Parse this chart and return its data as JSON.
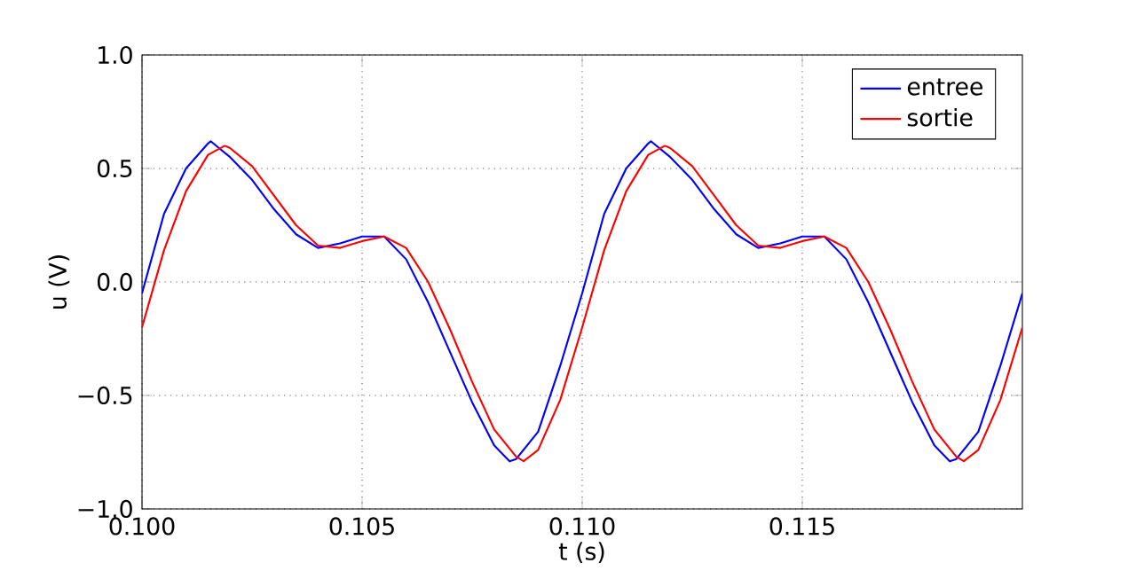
{
  "chart_data": {
    "type": "line",
    "xlabel": "t (s)",
    "ylabel": "u (V)",
    "xlim": [
      0.1,
      0.12
    ],
    "ylim": [
      -1.0,
      1.0
    ],
    "xticks": [
      {
        "value": 0.1,
        "label": "0.100"
      },
      {
        "value": 0.105,
        "label": "0.105"
      },
      {
        "value": 0.11,
        "label": "0.110"
      },
      {
        "value": 0.115,
        "label": "0.115"
      }
    ],
    "yticks": [
      {
        "value": -1.0,
        "label": "−1.0"
      },
      {
        "value": -0.5,
        "label": "−0.5"
      },
      {
        "value": 0.0,
        "label": "0.0"
      },
      {
        "value": 0.5,
        "label": "0.5"
      },
      {
        "value": 1.0,
        "label": "1.0"
      }
    ],
    "grid": true,
    "legend": "top right",
    "marker": "none",
    "line_style": "solid",
    "series": [
      {
        "name": "entree",
        "color": "#0000ff",
        "x": [
          0.1,
          0.1005,
          0.101,
          0.1015,
          0.10156,
          0.102,
          0.1025,
          0.103,
          0.1035,
          0.104,
          0.1045,
          0.105,
          0.1055,
          0.106,
          0.1065,
          0.107,
          0.1075,
          0.108,
          0.10835,
          0.1085,
          0.109,
          0.1095,
          0.11,
          0.1105,
          0.111,
          0.1115,
          0.11156,
          0.112,
          0.1125,
          0.113,
          0.1135,
          0.114,
          0.1145,
          0.115,
          0.1155,
          0.116,
          0.1165,
          0.117,
          0.1175,
          0.118,
          0.11835,
          0.1185,
          0.119,
          0.1195,
          0.12
        ],
        "values": [
          -0.05,
          0.3,
          0.5,
          0.61,
          0.62,
          0.55,
          0.45,
          0.32,
          0.21,
          0.15,
          0.17,
          0.2,
          0.2,
          0.1,
          -0.09,
          -0.31,
          -0.53,
          -0.72,
          -0.79,
          -0.78,
          -0.66,
          -0.37,
          -0.05,
          0.3,
          0.5,
          0.61,
          0.62,
          0.55,
          0.45,
          0.32,
          0.21,
          0.15,
          0.17,
          0.2,
          0.2,
          0.1,
          -0.09,
          -0.31,
          -0.53,
          -0.72,
          -0.79,
          -0.78,
          -0.66,
          -0.37,
          -0.05
        ]
      },
      {
        "name": "sortie",
        "color": "#ff0000",
        "x": [
          0.1,
          0.1005,
          0.101,
          0.1015,
          0.10188,
          0.102,
          0.1025,
          0.103,
          0.1035,
          0.104,
          0.1045,
          0.105,
          0.1055,
          0.106,
          0.1065,
          0.107,
          0.1075,
          0.108,
          0.1085,
          0.10867,
          0.109,
          0.1095,
          0.11,
          0.1105,
          0.111,
          0.1115,
          0.11188,
          0.112,
          0.1125,
          0.113,
          0.1135,
          0.114,
          0.1145,
          0.115,
          0.1155,
          0.116,
          0.1165,
          0.117,
          0.1175,
          0.118,
          0.1185,
          0.11867,
          0.119,
          0.1195,
          0.12
        ],
        "values": [
          -0.2,
          0.14,
          0.4,
          0.56,
          0.6,
          0.59,
          0.51,
          0.38,
          0.25,
          0.16,
          0.15,
          0.18,
          0.2,
          0.15,
          0.0,
          -0.21,
          -0.44,
          -0.65,
          -0.77,
          -0.79,
          -0.74,
          -0.52,
          -0.2,
          0.14,
          0.4,
          0.56,
          0.6,
          0.59,
          0.51,
          0.38,
          0.25,
          0.16,
          0.15,
          0.18,
          0.2,
          0.15,
          0.0,
          -0.21,
          -0.44,
          -0.65,
          -0.77,
          -0.79,
          -0.74,
          -0.52,
          -0.2
        ]
      }
    ]
  }
}
